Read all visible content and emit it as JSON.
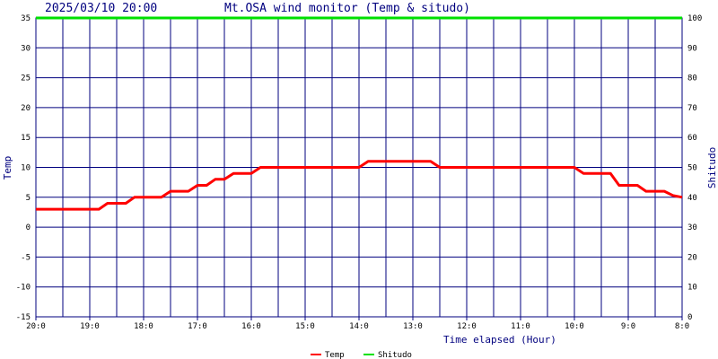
{
  "header": {
    "datetime": "2025/03/10 20:00",
    "title": "Mt.OSA wind monitor (Temp & situdo)"
  },
  "chart_data": {
    "type": "line",
    "title": "Mt.OSA wind monitor (Temp & situdo)",
    "xlabel": "Time elapsed (Hour)",
    "ylabel": "Temp",
    "y2label": "Shitudo",
    "x_tick_labels": [
      "20:0",
      "19:0",
      "18:0",
      "17:0",
      "16:0",
      "15:0",
      "14:0",
      "13:0",
      "12:0",
      "11:0",
      "10:0",
      "9:0",
      "8:0"
    ],
    "x_direction": "hours elapsed back from 20:00 (left = newest)",
    "xlim": [
      0,
      12
    ],
    "ylim": [
      -15,
      35
    ],
    "y_ticks": [
      35,
      30,
      25,
      20,
      15,
      10,
      5,
      0,
      -5,
      -10,
      -15
    ],
    "y2lim": [
      0,
      100
    ],
    "y2_ticks": [
      100,
      90,
      80,
      70,
      60,
      50,
      40,
      30,
      20,
      10,
      0
    ],
    "grid": true,
    "legend_position": "bottom-center",
    "series": [
      {
        "name": "Temp",
        "color": "#ff0000",
        "axis": "left",
        "x": [
          0,
          1.17,
          1.33,
          1.67,
          1.83,
          2.33,
          2.5,
          2.83,
          3.0,
          3.17,
          3.33,
          3.5,
          3.67,
          4.0,
          4.17,
          4.5,
          4.67,
          6.0,
          6.17,
          7.33,
          7.5,
          10.0,
          10.17,
          10.67,
          10.83,
          11.17,
          11.33,
          11.67,
          11.83,
          12.0
        ],
        "y": [
          3,
          3,
          4,
          4,
          5,
          5,
          6,
          6,
          7,
          7,
          8,
          8,
          9,
          9,
          10,
          10,
          10,
          10,
          11,
          11,
          10,
          10,
          9,
          9,
          7,
          7,
          6,
          6,
          5.3,
          5
        ]
      },
      {
        "name": "Shitudo",
        "color": "#00e000",
        "axis": "right",
        "x": [
          0,
          12
        ],
        "y": [
          100,
          100
        ]
      }
    ]
  }
}
